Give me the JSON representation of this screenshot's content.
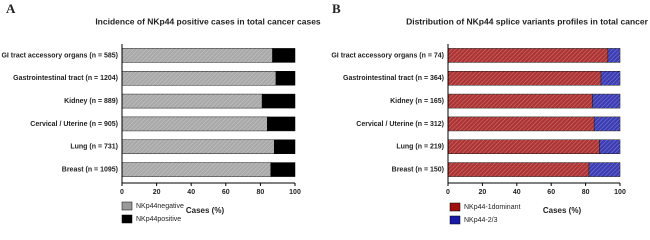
{
  "chart_data": [
    {
      "type": "stacked-bar-horizontal",
      "panel": "A",
      "title": "Incidence of NKp44 positive cases in total cancer cases",
      "categories": [
        "GI tract accessory organs (n = 585)",
        "Gastrointestinal tract (n = 1204)",
        "Kidney (n = 889)",
        "Cervical / Uterine (n = 905)",
        "Lung (n = 731)",
        "Breast (n = 1095)"
      ],
      "series": [
        {
          "name": "NKp44negative",
          "color": "#9a9a9a",
          "values": [
            87,
            89,
            81,
            84,
            88,
            86
          ]
        },
        {
          "name": "NKp44positive",
          "color": "#000000",
          "values": [
            13,
            11,
            19,
            16,
            12,
            14
          ]
        }
      ],
      "x_label": "Cases (%)",
      "xlim": [
        0,
        100
      ],
      "xticks": [
        0,
        20,
        40,
        60,
        80,
        100
      ]
    },
    {
      "type": "stacked-bar-horizontal",
      "panel": "B",
      "title": "Distribution of NKp44 splice variants profiles in total cancer cases",
      "categories": [
        "GI tract accessory organs (n = 74)",
        "Gastrointestinal tract (n = 364)",
        "Kidney (n = 165)",
        "Cervical / Uterine (n = 312)",
        "Lung (n = 219)",
        "Breast (n = 150)"
      ],
      "series": [
        {
          "name": "NKp44-1dominant",
          "color": "#a01010",
          "values": [
            93,
            89,
            84,
            85,
            88,
            82
          ]
        },
        {
          "name": "NKp44-2/3",
          "color": "#1a1aa8",
          "values": [
            7,
            11,
            16,
            15,
            12,
            18
          ]
        }
      ],
      "x_label": "Cases (%)",
      "xlim": [
        0,
        100
      ],
      "xticks": [
        0,
        20,
        40,
        60,
        80,
        100
      ]
    }
  ]
}
